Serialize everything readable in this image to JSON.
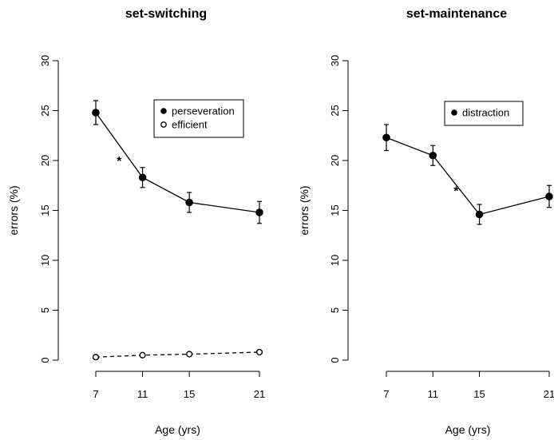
{
  "chart_data": [
    {
      "type": "line",
      "title": "set-switching",
      "xlabel": "Age (yrs)",
      "ylabel": "errors (%)",
      "x": [
        7,
        11,
        15,
        21
      ],
      "ylim": [
        0,
        30
      ],
      "yticks": [
        0,
        5,
        10,
        15,
        20,
        25,
        30
      ],
      "grid": false,
      "legend_position": "top-right",
      "series": [
        {
          "name": "perseveration",
          "marker": "filled-circle",
          "line": "solid",
          "values": [
            24.8,
            18.3,
            15.8,
            14.8
          ],
          "error": [
            1.2,
            1.0,
            1.0,
            1.1
          ]
        },
        {
          "name": "efficient",
          "marker": "open-circle",
          "line": "dashed",
          "values": [
            0.3,
            0.5,
            0.6,
            0.8
          ],
          "error": [
            0.1,
            0.1,
            0.1,
            0.1
          ]
        }
      ],
      "annotations": [
        {
          "text": "*",
          "x": 9,
          "y": 20
        }
      ]
    },
    {
      "type": "line",
      "title": "set-maintenance",
      "xlabel": "Age (yrs)",
      "ylabel": "errors (%)",
      "x": [
        7,
        11,
        15,
        21
      ],
      "ylim": [
        0,
        30
      ],
      "yticks": [
        0,
        5,
        10,
        15,
        20,
        25,
        30
      ],
      "grid": false,
      "legend_position": "top-right",
      "series": [
        {
          "name": "distraction",
          "marker": "filled-circle",
          "line": "solid",
          "values": [
            22.3,
            20.5,
            14.6,
            16.4
          ],
          "error": [
            1.3,
            1.0,
            1.0,
            1.1
          ]
        }
      ],
      "annotations": [
        {
          "text": "*",
          "x": 13,
          "y": 17
        }
      ]
    }
  ]
}
